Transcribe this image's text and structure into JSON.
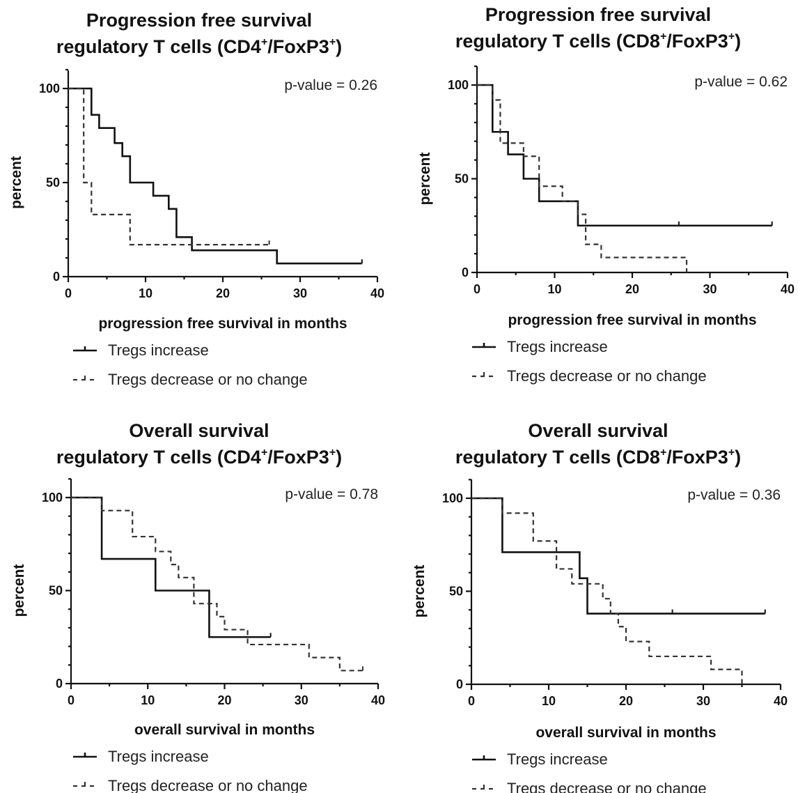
{
  "chart_data": [
    {
      "type": "line",
      "step": true,
      "title_line1": "Progression free survival",
      "title_line2": {
        "before": "regulatory T cells (CD4",
        "sup1": "+",
        "middle": "/FoxP3",
        "sup2": "+",
        "after": ")"
      },
      "xlabel": "progression free survival in months",
      "ylabel": "percent",
      "xlim": [
        0,
        40
      ],
      "ylim": [
        0,
        100
      ],
      "xticks": [
        "0",
        "10",
        "20",
        "30",
        "40"
      ],
      "yticks": [
        "0",
        "50",
        "100"
      ],
      "annotation": "p-value = 0.26",
      "legend": [
        "Tregs increase",
        "Tregs decrease or no change"
      ],
      "series": [
        {
          "name": "Tregs increase",
          "style": "solid",
          "x": [
            0,
            3,
            4,
            6,
            7,
            8,
            11,
            13,
            14,
            16,
            27,
            38
          ],
          "y": [
            100,
            86,
            79,
            71,
            64,
            50,
            43,
            36,
            21,
            14,
            7,
            7
          ],
          "censored": [
            [
              38,
              7
            ]
          ]
        },
        {
          "name": "Tregs decrease or no change",
          "style": "dashed",
          "x": [
            0,
            2,
            3,
            8,
            26
          ],
          "y": [
            100,
            50,
            33,
            17,
            17
          ],
          "censored": [
            [
              26,
              17
            ]
          ]
        }
      ]
    },
    {
      "type": "line",
      "step": true,
      "title_line1": "Progression free survival",
      "title_line2": {
        "before": "regulatory T cells (CD8",
        "sup1": "+",
        "middle": "/FoxP3",
        "sup2": "+",
        "after": ")"
      },
      "xlabel": "progression free survival in months",
      "ylabel": "percent",
      "xlim": [
        0,
        40
      ],
      "ylim": [
        0,
        100
      ],
      "xticks": [
        "0",
        "10",
        "20",
        "30",
        "40"
      ],
      "yticks": [
        "0",
        "50",
        "100"
      ],
      "annotation": "p-value = 0.62",
      "legend": [
        "Tregs increase",
        "Tregs decrease or no change"
      ],
      "series": [
        {
          "name": "Tregs increase",
          "style": "solid",
          "x": [
            0,
            2,
            4,
            6,
            8,
            13,
            38
          ],
          "y": [
            100,
            75,
            63,
            50,
            38,
            25,
            25
          ],
          "censored": [
            [
              26,
              25
            ],
            [
              38,
              25
            ]
          ]
        },
        {
          "name": "Tregs decrease or no change",
          "style": "dashed",
          "x": [
            0,
            2,
            3,
            6,
            8,
            11,
            13,
            14,
            16,
            27
          ],
          "y": [
            100,
            92,
            69,
            62,
            46,
            38,
            31,
            15,
            8,
            0
          ],
          "censored": []
        }
      ]
    },
    {
      "type": "line",
      "step": true,
      "title_line1": "Overall survival",
      "title_line2": {
        "before": "regulatory T cells (CD4",
        "sup1": "+",
        "middle": "/FoxP3",
        "sup2": "+",
        "after": ")"
      },
      "xlabel": "overall survival in months",
      "ylabel": "percent",
      "xlim": [
        0,
        40
      ],
      "ylim": [
        0,
        100
      ],
      "xticks": [
        "0",
        "10",
        "20",
        "30",
        "40"
      ],
      "yticks": [
        "0",
        "50",
        "100"
      ],
      "annotation": "p-value = 0.78",
      "legend": [
        "Tregs increase",
        "Tregs decrease or no change"
      ],
      "series": [
        {
          "name": "Tregs increase",
          "style": "solid",
          "x": [
            0,
            4,
            11,
            18,
            26
          ],
          "y": [
            100,
            67,
            50,
            25,
            25
          ],
          "censored": [
            [
              26,
              25
            ]
          ]
        },
        {
          "name": "Tregs decrease or no change",
          "style": "dashed",
          "x": [
            0,
            4,
            8,
            11,
            13,
            14,
            16,
            18,
            19,
            20,
            23,
            31,
            35,
            38
          ],
          "y": [
            100,
            93,
            79,
            71,
            64,
            57,
            43,
            43,
            36,
            29,
            21,
            14,
            7,
            7
          ],
          "censored": [
            [
              38,
              7
            ]
          ]
        }
      ]
    },
    {
      "type": "line",
      "step": true,
      "title_line1": "Overall survival",
      "title_line2": {
        "before": "regulatory T cells (CD8",
        "sup1": "+",
        "middle": "/FoxP3",
        "sup2": "+",
        "after": ")"
      },
      "xlabel": "overall survival in months",
      "ylabel": "percent",
      "xlim": [
        0,
        40
      ],
      "ylim": [
        0,
        100
      ],
      "xticks": [
        "0",
        "10",
        "20",
        "30",
        "40"
      ],
      "yticks": [
        "0",
        "50",
        "100"
      ],
      "annotation": "p-value = 0.36",
      "legend": [
        "Tregs increase",
        "Tregs decrease or no change"
      ],
      "series": [
        {
          "name": "Tregs increase",
          "style": "solid",
          "x": [
            0,
            4,
            14,
            15,
            38
          ],
          "y": [
            100,
            71,
            57,
            38,
            38
          ],
          "censored": [
            [
              26,
              38
            ],
            [
              38,
              38
            ]
          ]
        },
        {
          "name": "Tregs decrease or no change",
          "style": "dashed",
          "x": [
            0,
            4,
            8,
            11,
            13,
            15,
            17,
            18,
            19,
            20,
            23,
            31,
            35
          ],
          "y": [
            100,
            92,
            77,
            62,
            54,
            54,
            46,
            38,
            31,
            23,
            15,
            8,
            0
          ],
          "censored": []
        }
      ]
    }
  ]
}
